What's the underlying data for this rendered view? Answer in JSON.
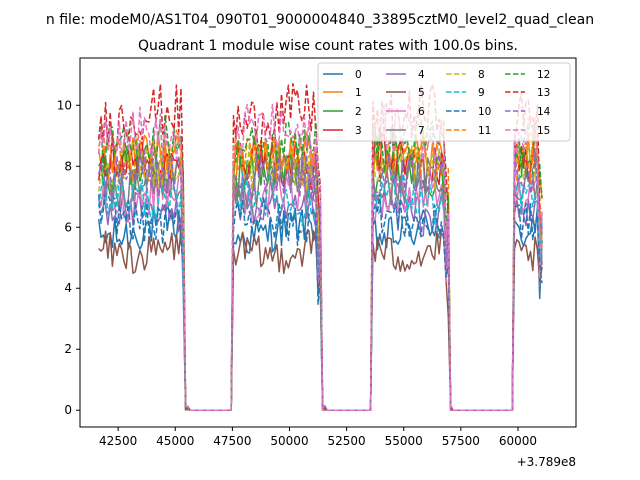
{
  "chart_data": {
    "type": "line",
    "suptitle": "n file: modeM0/AS1T04_090T01_9000004840_33895cztM0_level2_quad_clean",
    "title": "Quadrant 1 module wise count rates with 100.0s bins.",
    "xlabel": "",
    "ylabel": "",
    "offset_label": "+3.789e8",
    "xlim": [
      40830,
      62540
    ],
    "ylim": [
      -0.55,
      11.55
    ],
    "xticks": [
      42500,
      45000,
      47500,
      50000,
      52500,
      55000,
      57500,
      60000
    ],
    "yticks": [
      0,
      2,
      4,
      6,
      8,
      10
    ],
    "legend_position": "upper-right",
    "legend_columns": 4,
    "time_range": [
      41650,
      61050
    ],
    "bin_seconds": 100,
    "segments": [
      {
        "on_start": 41650,
        "on_end": 45400,
        "drop_end": 45550
      },
      {
        "on_start": 47550,
        "on_end": 51350,
        "drop_end": 51550
      },
      {
        "on_start": 53650,
        "on_end": 56950,
        "drop_end": 57100
      },
      {
        "on_start": 59850,
        "on_end": 61050,
        "drop_end": 61050
      }
    ],
    "gap_starts": [
      45550,
      51550,
      57100
    ],
    "gap_ends": [
      47400,
      53500,
      59700
    ],
    "series": [
      {
        "name": "0",
        "color": "#1f77b4",
        "dash": false,
        "level": 5.9
      },
      {
        "name": "1",
        "color": "#ff7f0e",
        "dash": false,
        "level": 8.2
      },
      {
        "name": "2",
        "color": "#2ca02c",
        "dash": false,
        "level": 7.7
      },
      {
        "name": "3",
        "color": "#d62728",
        "dash": false,
        "level": 8.1
      },
      {
        "name": "4",
        "color": "#9467bd",
        "dash": false,
        "level": 6.6
      },
      {
        "name": "5",
        "color": "#8c564b",
        "dash": false,
        "level": 5.3
      },
      {
        "name": "6",
        "color": "#e377c2",
        "dash": false,
        "level": 7.1
      },
      {
        "name": "7",
        "color": "#7f7f7f",
        "dash": false,
        "level": 7.4
      },
      {
        "name": "8",
        "color": "#bcbd22",
        "dash": true,
        "level": 7.9
      },
      {
        "name": "9",
        "color": "#17becf",
        "dash": true,
        "level": 6.9
      },
      {
        "name": "10",
        "color": "#1f77b4",
        "dash": true,
        "level": 6.3
      },
      {
        "name": "11",
        "color": "#ff7f0e",
        "dash": true,
        "level": 8.5
      },
      {
        "name": "12",
        "color": "#2ca02c",
        "dash": true,
        "level": 8.8
      },
      {
        "name": "13",
        "color": "#d62728",
        "dash": true,
        "level": 9.6
      },
      {
        "name": "14",
        "color": "#9467bd",
        "dash": true,
        "level": 7.6
      },
      {
        "name": "15",
        "color": "#e377c2",
        "dash": true,
        "level": 9.0
      }
    ]
  }
}
